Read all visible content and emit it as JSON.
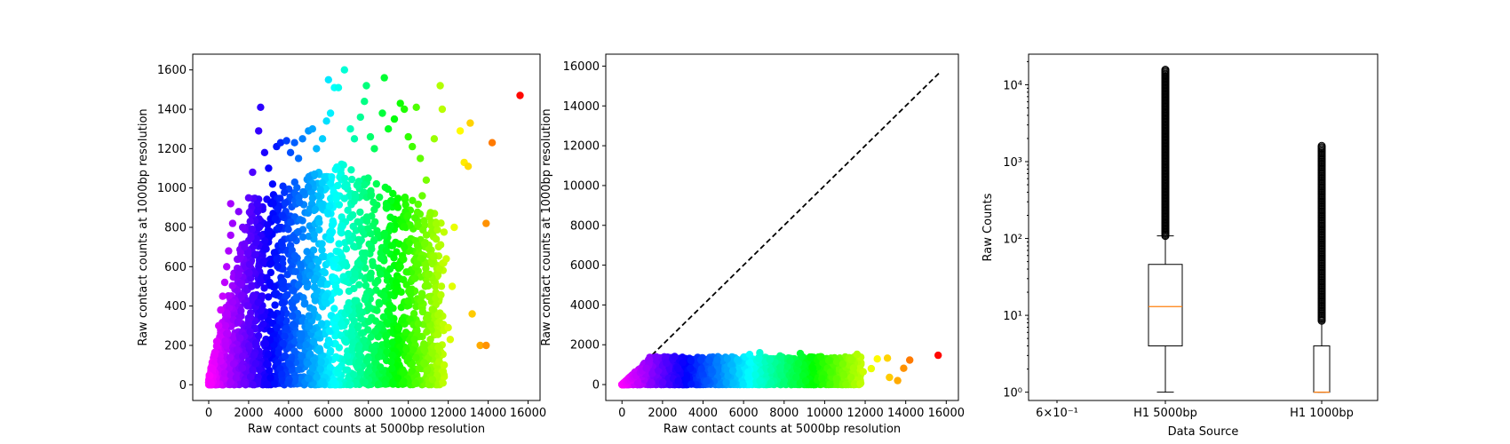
{
  "chart_data": [
    {
      "type": "scatter",
      "xlabel": "Raw contact counts at 5000bp resolution",
      "ylabel": "Raw contact counts at 1000bp resolution",
      "xlim": [
        -800,
        16600
      ],
      "ylim": [
        -80,
        1680
      ],
      "xticks": [
        0,
        2000,
        4000,
        6000,
        8000,
        10000,
        12000,
        14000,
        16000
      ],
      "yticks": [
        0,
        200,
        400,
        600,
        800,
        1000,
        1200,
        1400,
        1600
      ],
      "colormap": "gist_rainbow by x value",
      "points": [
        [
          100,
          10
        ],
        [
          200,
          80
        ],
        [
          300,
          150
        ],
        [
          400,
          220
        ],
        [
          500,
          300
        ],
        [
          600,
          380
        ],
        [
          700,
          450
        ],
        [
          800,
          520
        ],
        [
          900,
          600
        ],
        [
          1000,
          680
        ],
        [
          1100,
          760
        ],
        [
          1200,
          820
        ],
        [
          600,
          120
        ],
        [
          900,
          260
        ],
        [
          1200,
          420
        ],
        [
          1500,
          560
        ],
        [
          1800,
          700
        ],
        [
          1100,
          920
        ],
        [
          1500,
          880
        ],
        [
          2000,
          950
        ],
        [
          1700,
          800
        ],
        [
          2200,
          1080
        ],
        [
          2500,
          1290
        ],
        [
          2600,
          1410
        ],
        [
          2800,
          1180
        ],
        [
          3000,
          1100
        ],
        [
          3200,
          1020
        ],
        [
          3400,
          1210
        ],
        [
          3600,
          1230
        ],
        [
          3900,
          1240
        ],
        [
          4100,
          1180
        ],
        [
          4300,
          1230
        ],
        [
          4500,
          1150
        ],
        [
          4700,
          1250
        ],
        [
          5000,
          1290
        ],
        [
          5200,
          1300
        ],
        [
          5400,
          1200
        ],
        [
          5700,
          1250
        ],
        [
          5900,
          1340
        ],
        [
          6100,
          1380
        ],
        [
          6300,
          1510
        ],
        [
          6000,
          1550
        ],
        [
          6500,
          1510
        ],
        [
          6800,
          1600
        ],
        [
          7100,
          1300
        ],
        [
          7300,
          1250
        ],
        [
          7600,
          1360
        ],
        [
          7800,
          1440
        ],
        [
          7900,
          1520
        ],
        [
          8100,
          1260
        ],
        [
          8300,
          1200
        ],
        [
          8700,
          1380
        ],
        [
          8800,
          1560
        ],
        [
          9000,
          1300
        ],
        [
          9300,
          1350
        ],
        [
          9600,
          1430
        ],
        [
          9800,
          1400
        ],
        [
          10000,
          1260
        ],
        [
          10200,
          1210
        ],
        [
          10400,
          1410
        ],
        [
          10600,
          1150
        ],
        [
          10700,
          960
        ],
        [
          10900,
          1040
        ],
        [
          11100,
          870
        ],
        [
          11300,
          1250
        ],
        [
          11400,
          740
        ],
        [
          11600,
          1520
        ],
        [
          11700,
          1400
        ],
        [
          11900,
          640
        ],
        [
          12000,
          290
        ],
        [
          12300,
          800
        ],
        [
          12600,
          1290
        ],
        [
          12800,
          1130
        ],
        [
          13100,
          1330
        ],
        [
          13200,
          360
        ],
        [
          13000,
          1110
        ],
        [
          13600,
          200
        ],
        [
          13900,
          200
        ],
        [
          13900,
          820
        ],
        [
          14200,
          1230
        ],
        [
          15600,
          1470
        ],
        [
          10100,
          480
        ],
        [
          10300,
          230
        ],
        [
          10500,
          310
        ],
        [
          10800,
          200
        ],
        [
          11000,
          560
        ],
        [
          11200,
          160
        ],
        [
          11500,
          190
        ],
        [
          11800,
          100
        ],
        [
          12200,
          500
        ],
        [
          12100,
          230
        ],
        [
          9200,
          150
        ],
        [
          9500,
          230
        ],
        [
          9700,
          330
        ],
        [
          9900,
          180
        ],
        [
          8600,
          90
        ],
        [
          8900,
          250
        ],
        [
          9100,
          400
        ],
        [
          9400,
          520
        ],
        [
          9600,
          600
        ],
        [
          9800,
          700
        ]
      ]
    },
    {
      "type": "scatter",
      "xlabel": "Raw contact counts at 5000bp resolution",
      "ylabel": "Raw contact counts at 1000bp resolution",
      "xlim": [
        -800,
        16600
      ],
      "ylim": [
        -800,
        16600
      ],
      "xticks": [
        0,
        2000,
        4000,
        6000,
        8000,
        10000,
        12000,
        14000,
        16000
      ],
      "yticks": [
        0,
        2000,
        4000,
        6000,
        8000,
        10000,
        12000,
        14000,
        16000
      ],
      "reference_line": "dashed y = x",
      "reference_x": [
        0,
        15700
      ],
      "colormap": "gist_rainbow by x value",
      "points": [
        [
          100,
          10
        ],
        [
          200,
          80
        ],
        [
          300,
          150
        ],
        [
          400,
          220
        ],
        [
          500,
          300
        ],
        [
          600,
          380
        ],
        [
          700,
          450
        ],
        [
          900,
          600
        ],
        [
          1000,
          680
        ],
        [
          1200,
          820
        ],
        [
          1500,
          560
        ],
        [
          1800,
          700
        ],
        [
          2000,
          950
        ],
        [
          2200,
          1080
        ],
        [
          2500,
          1290
        ],
        [
          2600,
          1410
        ],
        [
          3000,
          1100
        ],
        [
          3400,
          1210
        ],
        [
          3900,
          1240
        ],
        [
          4300,
          1230
        ],
        [
          4700,
          1250
        ],
        [
          5200,
          1300
        ],
        [
          5700,
          1250
        ],
        [
          6100,
          1380
        ],
        [
          6300,
          1510
        ],
        [
          6800,
          1600
        ],
        [
          7300,
          1250
        ],
        [
          7800,
          1440
        ],
        [
          8300,
          1200
        ],
        [
          8800,
          1560
        ],
        [
          9300,
          1350
        ],
        [
          9800,
          1400
        ],
        [
          10200,
          1210
        ],
        [
          10600,
          1150
        ],
        [
          10900,
          1040
        ],
        [
          11300,
          1250
        ],
        [
          11600,
          1520
        ],
        [
          11900,
          640
        ],
        [
          12300,
          800
        ],
        [
          12600,
          1290
        ],
        [
          13100,
          1330
        ],
        [
          13200,
          360
        ],
        [
          13600,
          200
        ],
        [
          13900,
          820
        ],
        [
          14200,
          1230
        ],
        [
          15600,
          1470
        ]
      ]
    },
    {
      "type": "box",
      "xlabel": "Data Source",
      "ylabel": "Raw Counts",
      "yscale": "log",
      "ylim": [
        0.78,
        25000
      ],
      "xscale": "log",
      "categories": [
        "H1 5000bp",
        "H1 1000bp"
      ],
      "xtick_extra": "6×10⁻¹",
      "yticks": [
        "10⁰",
        "10¹",
        "10²",
        "10³",
        "10⁴"
      ],
      "boxes": [
        {
          "name": "H1 5000bp",
          "whisker_low": 1,
          "q1": 4,
          "median": 13,
          "q3": 46,
          "whisker_high": 108,
          "outliers_to": 15700
        },
        {
          "name": "H1 1000bp",
          "whisker_low": 1,
          "q1": 1,
          "median": 1,
          "q3": 4,
          "whisker_high": 8.5,
          "outliers_to": 1600
        }
      ]
    }
  ]
}
